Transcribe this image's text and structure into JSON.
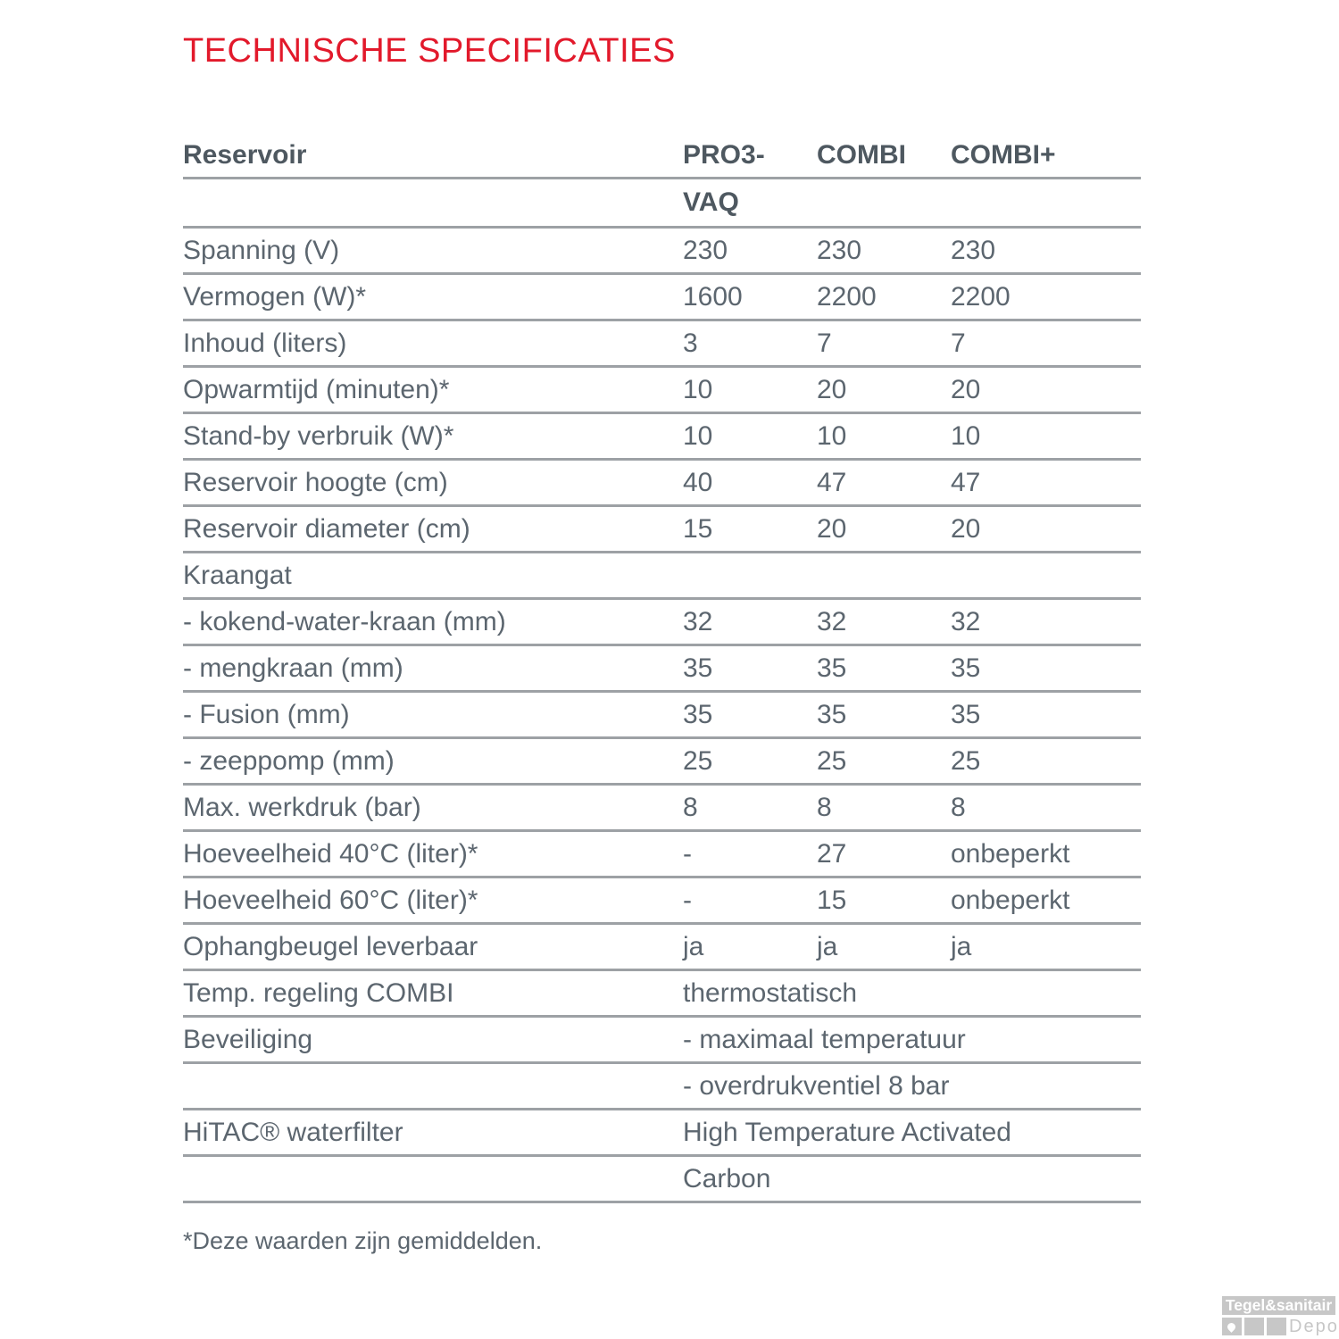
{
  "title": "TECHNISCHE SPECIFICATIES",
  "table": {
    "header": {
      "reservoir": "Reservoir",
      "col1_line1": "PRO3-",
      "col1_line2": "VAQ",
      "col2": "COMBI",
      "col3": "COMBI+"
    },
    "rows": [
      {
        "label": "Spanning (V)",
        "values": [
          "230",
          "230",
          "230"
        ]
      },
      {
        "label": "Vermogen (W)*",
        "values": [
          "1600",
          "2200",
          "2200"
        ]
      },
      {
        "label": "Inhoud (liters)",
        "values": [
          "3",
          "7",
          "7"
        ]
      },
      {
        "label": "Opwarmtijd (minuten)*",
        "values": [
          "10",
          "20",
          "20"
        ]
      },
      {
        "label": "Stand-by verbruik (W)*",
        "values": [
          "10",
          "10",
          "10"
        ]
      },
      {
        "label": "Reservoir hoogte (cm)",
        "values": [
          "40",
          "47",
          "47"
        ]
      },
      {
        "label": "Reservoir diameter (cm)",
        "values": [
          "15",
          "20",
          "20"
        ]
      },
      {
        "label": "Kraangat",
        "values": [
          "",
          "",
          ""
        ]
      },
      {
        "label": "- kokend-water-kraan (mm)",
        "values": [
          "32",
          "32",
          "32"
        ]
      },
      {
        "label": "- mengkraan (mm)",
        "values": [
          "35",
          "35",
          "35"
        ]
      },
      {
        "label": "- Fusion (mm)",
        "values": [
          "35",
          "35",
          "35"
        ]
      },
      {
        "label": "- zeeppomp (mm)",
        "values": [
          "25",
          "25",
          "25"
        ]
      },
      {
        "label": "Max. werkdruk (bar)",
        "values": [
          "8",
          "8",
          "8"
        ]
      },
      {
        "label": "Hoeveelheid 40°C (liter)*",
        "values": [
          "-",
          "27",
          "onbeperkt"
        ]
      },
      {
        "label": "Hoeveelheid 60°C (liter)*",
        "values": [
          "-",
          "15",
          "onbeperkt"
        ]
      },
      {
        "label": "Ophangbeugel leverbaar",
        "values": [
          "ja",
          "ja",
          "ja"
        ]
      },
      {
        "label": "Temp. regeling COMBI",
        "span": "thermostatisch"
      },
      {
        "label": "Beveiliging",
        "span": "- maximaal temperatuur"
      },
      {
        "label": "",
        "span": "- overdrukventiel 8 bar"
      },
      {
        "label": "HiTAC® waterfilter",
        "span": "High Temperature Activated"
      },
      {
        "label": "",
        "span": "Carbon"
      }
    ]
  },
  "footnote": "*Deze waarden zijn gemiddelden.",
  "logo": {
    "brand": "Tegel&sanitair",
    "sub": "Depot",
    "icon": "water-droplet-icon"
  },
  "colors": {
    "accent_red": "#e2192b",
    "text_gray": "#5c666f",
    "header_gray": "#4e5860",
    "line_gray": "#9da1a5",
    "logo_gray": "#c7c7c7"
  }
}
